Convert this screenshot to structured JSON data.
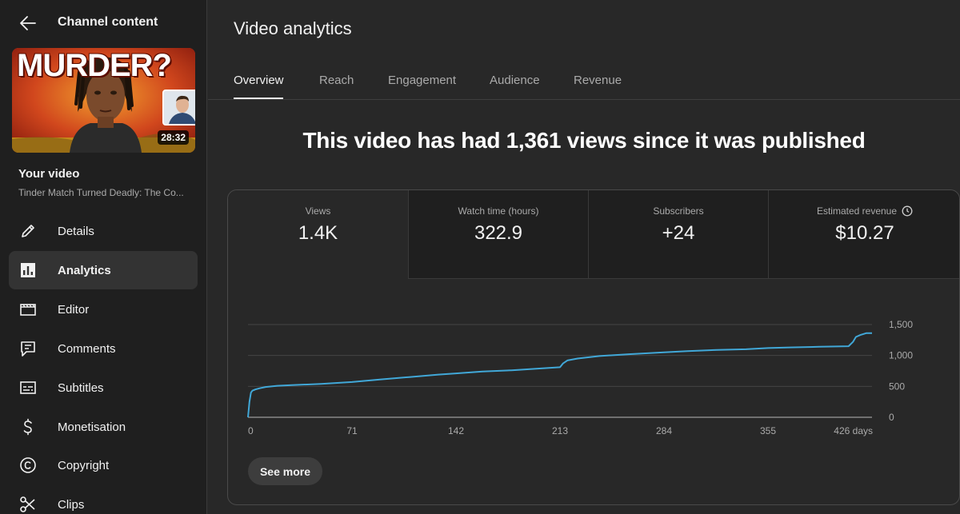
{
  "sidebar": {
    "title": "Channel content",
    "thumbnail": {
      "overlay_text": "MURDER?",
      "duration": "28:32"
    },
    "your_video_label": "Your video",
    "video_title": "Tinder Match Turned Deadly: The Co...",
    "items": [
      {
        "label": "Details",
        "icon": "pencil-icon"
      },
      {
        "label": "Analytics",
        "icon": "analytics-icon",
        "active": true
      },
      {
        "label": "Editor",
        "icon": "clapperboard-icon"
      },
      {
        "label": "Comments",
        "icon": "comments-icon"
      },
      {
        "label": "Subtitles",
        "icon": "subtitles-icon"
      },
      {
        "label": "Monetisation",
        "icon": "dollar-icon"
      },
      {
        "label": "Copyright",
        "icon": "copyright-icon"
      },
      {
        "label": "Clips",
        "icon": "scissors-icon"
      }
    ]
  },
  "main": {
    "title": "Video analytics",
    "tabs": [
      "Overview",
      "Reach",
      "Engagement",
      "Audience",
      "Revenue"
    ],
    "active_tab": "Overview",
    "headline": "This video has had 1,361 views since it was published",
    "metrics": [
      {
        "label": "Views",
        "value": "1.4K"
      },
      {
        "label": "Watch time (hours)",
        "value": "322.9"
      },
      {
        "label": "Subscribers",
        "value": "+24"
      },
      {
        "label": "Estimated revenue",
        "value": "$10.27"
      }
    ],
    "see_more_label": "See more"
  },
  "colors": {
    "background": "#282828",
    "sidebar": "#1f1f1f",
    "line": "#41a8d8",
    "text": "#f1f1f1",
    "muted": "#aaaaaa"
  },
  "chart_data": {
    "type": "line",
    "title": "",
    "xlabel": "",
    "ylabel": "",
    "xlim": [
      0,
      426
    ],
    "ylim": [
      0,
      1500
    ],
    "x_ticks": [
      "0",
      "71",
      "142",
      "213",
      "284",
      "355",
      "426 days"
    ],
    "y_ticks": [
      "0",
      "500",
      "1,000",
      "1,500"
    ],
    "grid": true,
    "series": [
      {
        "x": [
          0,
          1,
          2,
          3,
          5,
          8,
          12,
          20,
          30,
          50,
          71,
          90,
          110,
          130,
          142,
          160,
          180,
          200,
          213,
          215,
          218,
          225,
          240,
          260,
          284,
          300,
          320,
          340,
          355,
          370,
          390,
          410,
          413,
          415,
          418,
          422,
          426
        ],
        "y": [
          0,
          250,
          400,
          430,
          450,
          470,
          490,
          510,
          520,
          540,
          570,
          610,
          650,
          690,
          710,
          740,
          760,
          790,
          810,
          870,
          920,
          950,
          990,
          1020,
          1050,
          1070,
          1090,
          1100,
          1120,
          1130,
          1140,
          1150,
          1220,
          1300,
          1330,
          1360,
          1361
        ]
      }
    ]
  }
}
